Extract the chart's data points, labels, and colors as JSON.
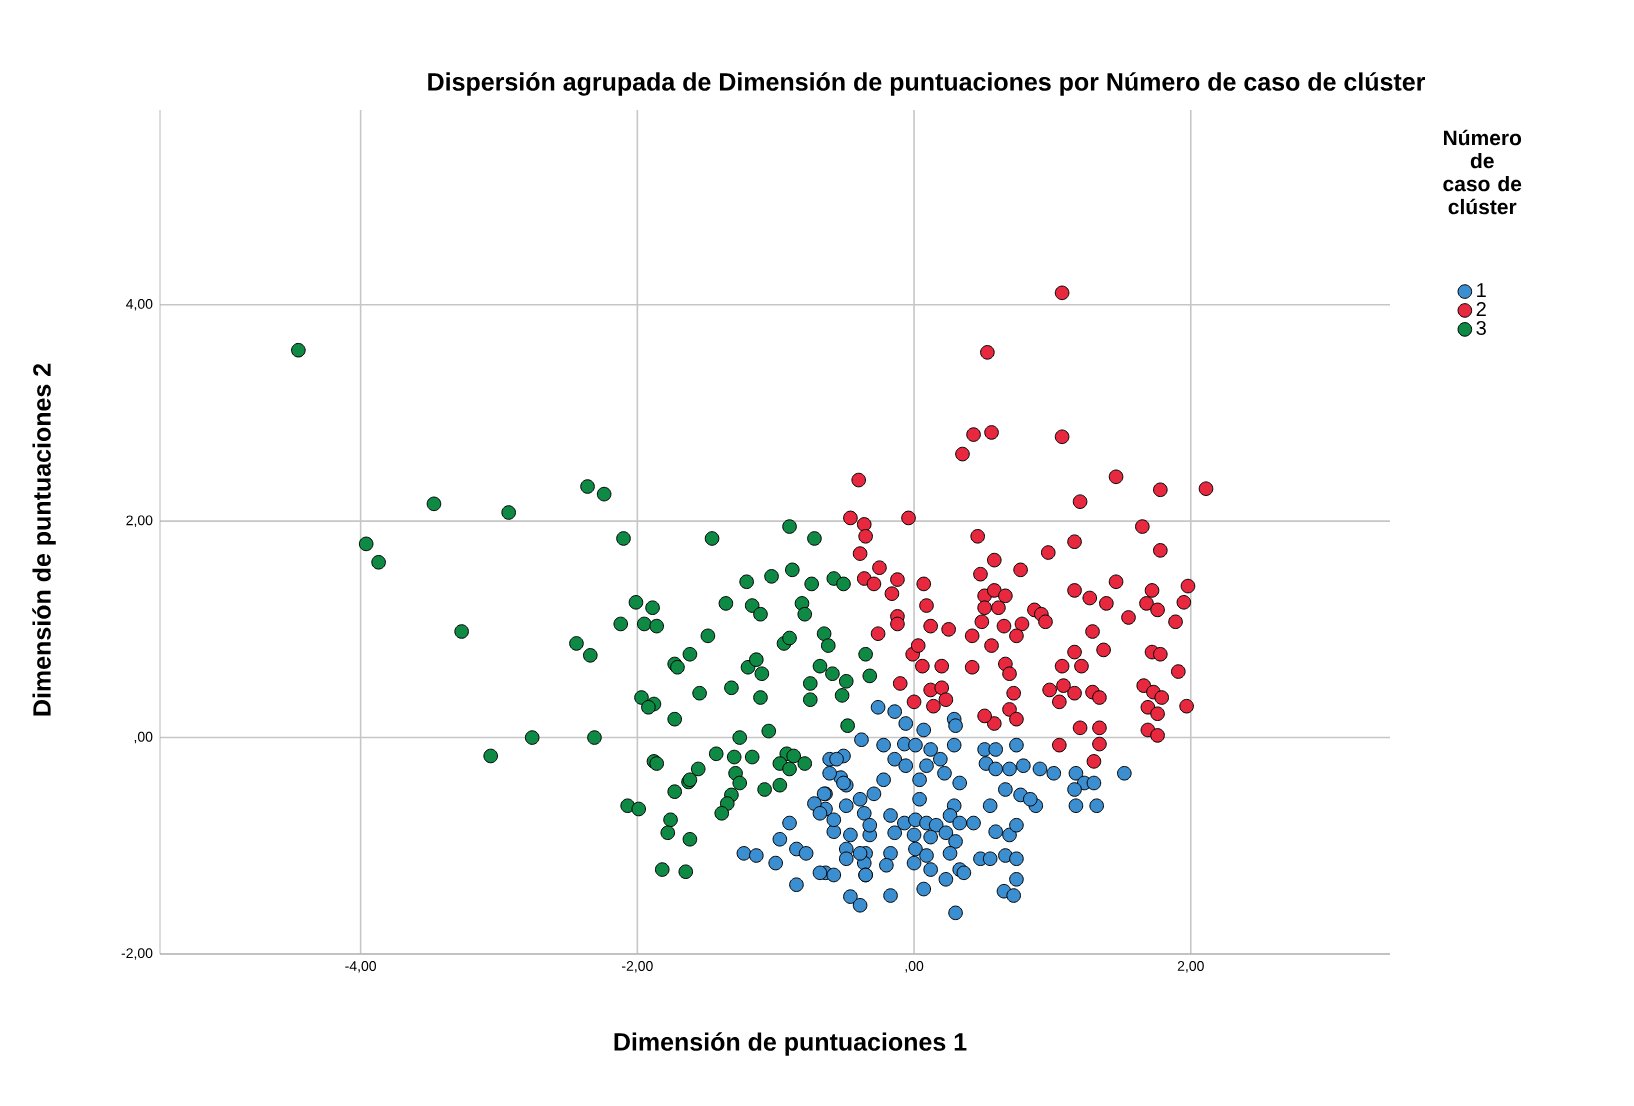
{
  "chart_data": {
    "type": "scatter",
    "title": "Dispersión agrupada de Dimensión de puntuaciones por Número de caso de clúster",
    "xlabel": "Dimensión de puntuaciones 1",
    "ylabel": "Dimensión de puntuaciones 2",
    "legend_title": "Número de caso de clúster",
    "legend": "right",
    "grid": true,
    "marker": "circle",
    "xlim": [
      -5.45,
      3.44
    ],
    "ylim": [
      -2,
      5.8
    ],
    "xticks": [
      {
        "value": -4,
        "label": "-4,00"
      },
      {
        "value": -2,
        "label": "-2,00"
      },
      {
        "value": 0,
        "label": ",00"
      },
      {
        "value": 2,
        "label": "2,00"
      }
    ],
    "yticks": [
      {
        "value": -2,
        "label": "-2,00"
      },
      {
        "value": 0,
        "label": ",00"
      },
      {
        "value": 2,
        "label": "2,00"
      },
      {
        "value": 4,
        "label": "4,00"
      }
    ],
    "series": [
      {
        "name": "1",
        "color": "#3b8ed0",
        "x": [
          -0.26,
          -0.14,
          -0.06,
          0.07,
          0.29,
          0.3,
          -0.38,
          -0.22,
          -0.07,
          0.01,
          0.12,
          0.29,
          0.51,
          0.59,
          0.74,
          -0.61,
          -0.51,
          -0.14,
          -0.06,
          0.09,
          0.19,
          0.22,
          0.52,
          0.59,
          0.69,
          0.79,
          0.91,
          1.01,
          1.17,
          1.23,
          1.3,
          1.52,
          -0.53,
          -0.64,
          -0.49,
          -0.22,
          -0.29,
          0.04,
          0.33,
          0.66,
          0.77,
          0.88,
          0.84,
          1.16,
          1.17,
          1.32,
          0.04,
          0.29,
          0.55,
          -0.39,
          -0.36,
          -0.64,
          -0.17,
          -0.07,
          0.01,
          0.09,
          0.16,
          0.26,
          0.33,
          0.43,
          0.59,
          0.69,
          0.74,
          -0.58,
          -0.46,
          -0.32,
          -0.32,
          -0.14,
          0.0,
          0.12,
          0.23,
          0.3,
          -0.49,
          -0.35,
          -0.17,
          0.01,
          0.09,
          0.26,
          0.48,
          0.55,
          0.66,
          0.74,
          -0.36,
          -0.2,
          0.0,
          0.12,
          0.33,
          -0.64,
          -0.35,
          0.07,
          0.23,
          0.36,
          0.74,
          0.65,
          0.72,
          -0.46,
          -0.39,
          -0.17,
          0.3,
          -0.56,
          -0.61,
          -0.51,
          -0.65,
          -0.72,
          -0.68,
          -0.58,
          -0.49,
          -0.9,
          -0.97,
          -1.23,
          -1.14,
          -1.0,
          -0.85,
          -0.78,
          -0.85,
          -0.68,
          -0.58,
          -0.49,
          -0.39,
          -0.35
        ],
        "values": [
          0.28,
          0.24,
          0.13,
          0.07,
          0.17,
          0.11,
          -0.02,
          -0.07,
          -0.06,
          -0.07,
          -0.11,
          -0.07,
          -0.11,
          -0.11,
          -0.07,
          -0.2,
          -0.17,
          -0.2,
          -0.26,
          -0.26,
          -0.2,
          -0.33,
          -0.24,
          -0.29,
          -0.29,
          -0.26,
          -0.29,
          -0.33,
          -0.33,
          -0.42,
          -0.42,
          -0.33,
          -0.37,
          -0.52,
          -0.44,
          -0.39,
          -0.52,
          -0.39,
          -0.42,
          -0.48,
          -0.53,
          -0.63,
          -0.57,
          -0.48,
          -0.63,
          -0.63,
          -0.57,
          -0.63,
          -0.63,
          -0.57,
          -0.7,
          -0.66,
          -0.72,
          -0.79,
          -0.76,
          -0.79,
          -0.81,
          -0.72,
          -0.79,
          -0.79,
          -0.87,
          -0.9,
          -0.81,
          -0.87,
          -0.9,
          -0.9,
          -0.81,
          -0.88,
          -0.9,
          -0.92,
          -0.88,
          -0.96,
          -1.03,
          -1.07,
          -1.07,
          -1.03,
          -1.09,
          -1.07,
          -1.12,
          -1.12,
          -1.09,
          -1.12,
          -1.16,
          -1.18,
          -1.16,
          -1.22,
          -1.22,
          -1.25,
          -1.27,
          -1.4,
          -1.31,
          -1.25,
          -1.31,
          -1.42,
          -1.46,
          -1.47,
          -1.55,
          -1.46,
          -1.62,
          -0.2,
          -0.33,
          -0.42,
          -0.52,
          -0.61,
          -0.7,
          -0.76,
          -0.63,
          -0.79,
          -0.94,
          -1.07,
          -1.09,
          -1.16,
          -1.03,
          -1.07,
          -1.36,
          -1.25,
          -1.27,
          -1.12,
          -1.07,
          -1.27
        ]
      },
      {
        "name": "2",
        "color": "#e8283e",
        "x": [
          1.07,
          0.53,
          0.43,
          0.56,
          0.35,
          1.07,
          -0.4,
          1.46,
          1.78,
          2.11,
          1.2,
          -0.46,
          -0.36,
          -0.35,
          -0.04,
          1.65,
          0.46,
          1.16,
          0.97,
          1.78,
          -0.39,
          0.58,
          -0.25,
          -0.36,
          -0.29,
          0.48,
          0.77,
          -0.12,
          0.07,
          -0.16,
          1.46,
          1.16,
          1.72,
          1.98,
          0.51,
          0.58,
          0.66,
          1.27,
          1.39,
          0.09,
          0.51,
          0.61,
          0.87,
          0.92,
          1.68,
          1.76,
          1.95,
          -0.12,
          -0.12,
          0.49,
          0.12,
          0.25,
          0.65,
          0.78,
          0.95,
          1.55,
          1.89,
          -0.26,
          1.29,
          0.42,
          0.56,
          0.74,
          -0.01,
          0.03,
          1.16,
          1.37,
          1.72,
          1.78,
          0.06,
          0.2,
          0.42,
          0.66,
          1.07,
          1.21,
          1.91,
          1.66,
          1.73,
          1.79,
          1.69,
          1.76,
          1.97,
          0.98,
          1.08,
          1.16,
          1.05,
          1.29,
          1.34,
          1.2,
          1.34,
          1.34,
          1.69,
          1.76,
          1.05,
          1.3,
          -0.1,
          0.12,
          0.2,
          0.14,
          0.23,
          0.69,
          0.72,
          0.69,
          0.74,
          0.58,
          0.51,
          0.0
        ],
        "values": [
          4.11,
          3.56,
          2.8,
          2.82,
          2.62,
          2.78,
          2.38,
          2.41,
          2.29,
          2.3,
          2.18,
          2.03,
          1.97,
          1.86,
          2.03,
          1.95,
          1.86,
          1.81,
          1.71,
          1.73,
          1.7,
          1.64,
          1.57,
          1.47,
          1.42,
          1.51,
          1.55,
          1.46,
          1.42,
          1.33,
          1.44,
          1.36,
          1.36,
          1.4,
          1.31,
          1.36,
          1.31,
          1.29,
          1.24,
          1.22,
          1.2,
          1.2,
          1.18,
          1.14,
          1.24,
          1.18,
          1.25,
          1.12,
          1.05,
          1.07,
          1.03,
          1.0,
          1.03,
          1.05,
          1.07,
          1.11,
          1.07,
          0.96,
          0.98,
          0.94,
          0.85,
          0.94,
          0.77,
          0.85,
          0.79,
          0.81,
          0.79,
          0.77,
          0.66,
          0.66,
          0.65,
          0.68,
          0.66,
          0.66,
          0.61,
          0.48,
          0.42,
          0.37,
          0.28,
          0.22,
          0.29,
          0.44,
          0.48,
          0.41,
          0.33,
          0.42,
          0.37,
          0.09,
          0.09,
          -0.06,
          0.07,
          0.02,
          -0.07,
          -0.22,
          0.5,
          0.44,
          0.46,
          0.29,
          0.35,
          0.59,
          0.41,
          0.26,
          0.17,
          0.13,
          0.2,
          0.33
        ]
      },
      {
        "name": "3",
        "color": "#0e8a45",
        "x": [
          -4.45,
          -3.96,
          -3.87,
          -3.47,
          -2.93,
          -2.36,
          -2.24,
          -2.1,
          -3.27,
          -2.44,
          -2.34,
          -2.01,
          -1.89,
          -2.12,
          -1.95,
          -1.86,
          -1.62,
          -1.73,
          -1.71,
          -1.97,
          -1.88,
          -1.92,
          -1.73,
          -2.76,
          -3.06,
          -2.31,
          -1.88,
          -1.63,
          -1.73,
          -2.07,
          -1.99,
          -1.76,
          -1.78,
          -1.62,
          -1.82,
          -1.65,
          -1.46,
          -0.9,
          -0.72,
          -1.21,
          -1.03,
          -0.88,
          -0.74,
          -0.58,
          -0.51,
          -1.36,
          -1.17,
          -1.11,
          -0.81,
          -0.79,
          -1.49,
          -0.94,
          -0.9,
          -0.65,
          -0.62,
          -0.35,
          -1.2,
          -1.14,
          -1.1,
          -0.68,
          -0.59,
          -0.49,
          -0.32,
          -1.55,
          -1.32,
          -1.11,
          -0.75,
          -0.75,
          -0.52,
          -1.05,
          -1.26,
          -0.48,
          -1.43,
          -1.3,
          -1.17,
          -0.92,
          -0.87,
          -0.79,
          -0.97,
          -0.9,
          -1.86,
          -1.56,
          -1.62,
          -1.29,
          -1.26,
          -0.97,
          -1.08,
          -1.32,
          -1.35,
          -1.39
        ],
        "values": [
          3.58,
          1.79,
          1.62,
          2.16,
          2.08,
          2.32,
          2.25,
          1.84,
          0.98,
          0.87,
          0.76,
          1.25,
          1.2,
          1.05,
          1.05,
          1.03,
          0.77,
          0.68,
          0.65,
          0.37,
          0.31,
          0.28,
          0.17,
          0.0,
          -0.17,
          0.0,
          -0.22,
          -0.41,
          -0.5,
          -0.63,
          -0.66,
          -0.76,
          -0.88,
          -0.94,
          -1.22,
          -1.24,
          1.84,
          1.95,
          1.84,
          1.44,
          1.49,
          1.55,
          1.42,
          1.47,
          1.42,
          1.24,
          1.22,
          1.14,
          1.24,
          1.14,
          0.94,
          0.87,
          0.92,
          0.96,
          0.85,
          0.77,
          0.65,
          0.72,
          0.59,
          0.66,
          0.59,
          0.52,
          0.57,
          0.41,
          0.46,
          0.37,
          0.5,
          0.35,
          0.39,
          0.06,
          0.0,
          0.11,
          -0.15,
          -0.18,
          -0.18,
          -0.15,
          -0.17,
          -0.24,
          -0.24,
          -0.29,
          -0.24,
          -0.29,
          -0.39,
          -0.33,
          -0.42,
          -0.44,
          -0.48,
          -0.53,
          -0.61,
          -0.7
        ]
      }
    ]
  }
}
